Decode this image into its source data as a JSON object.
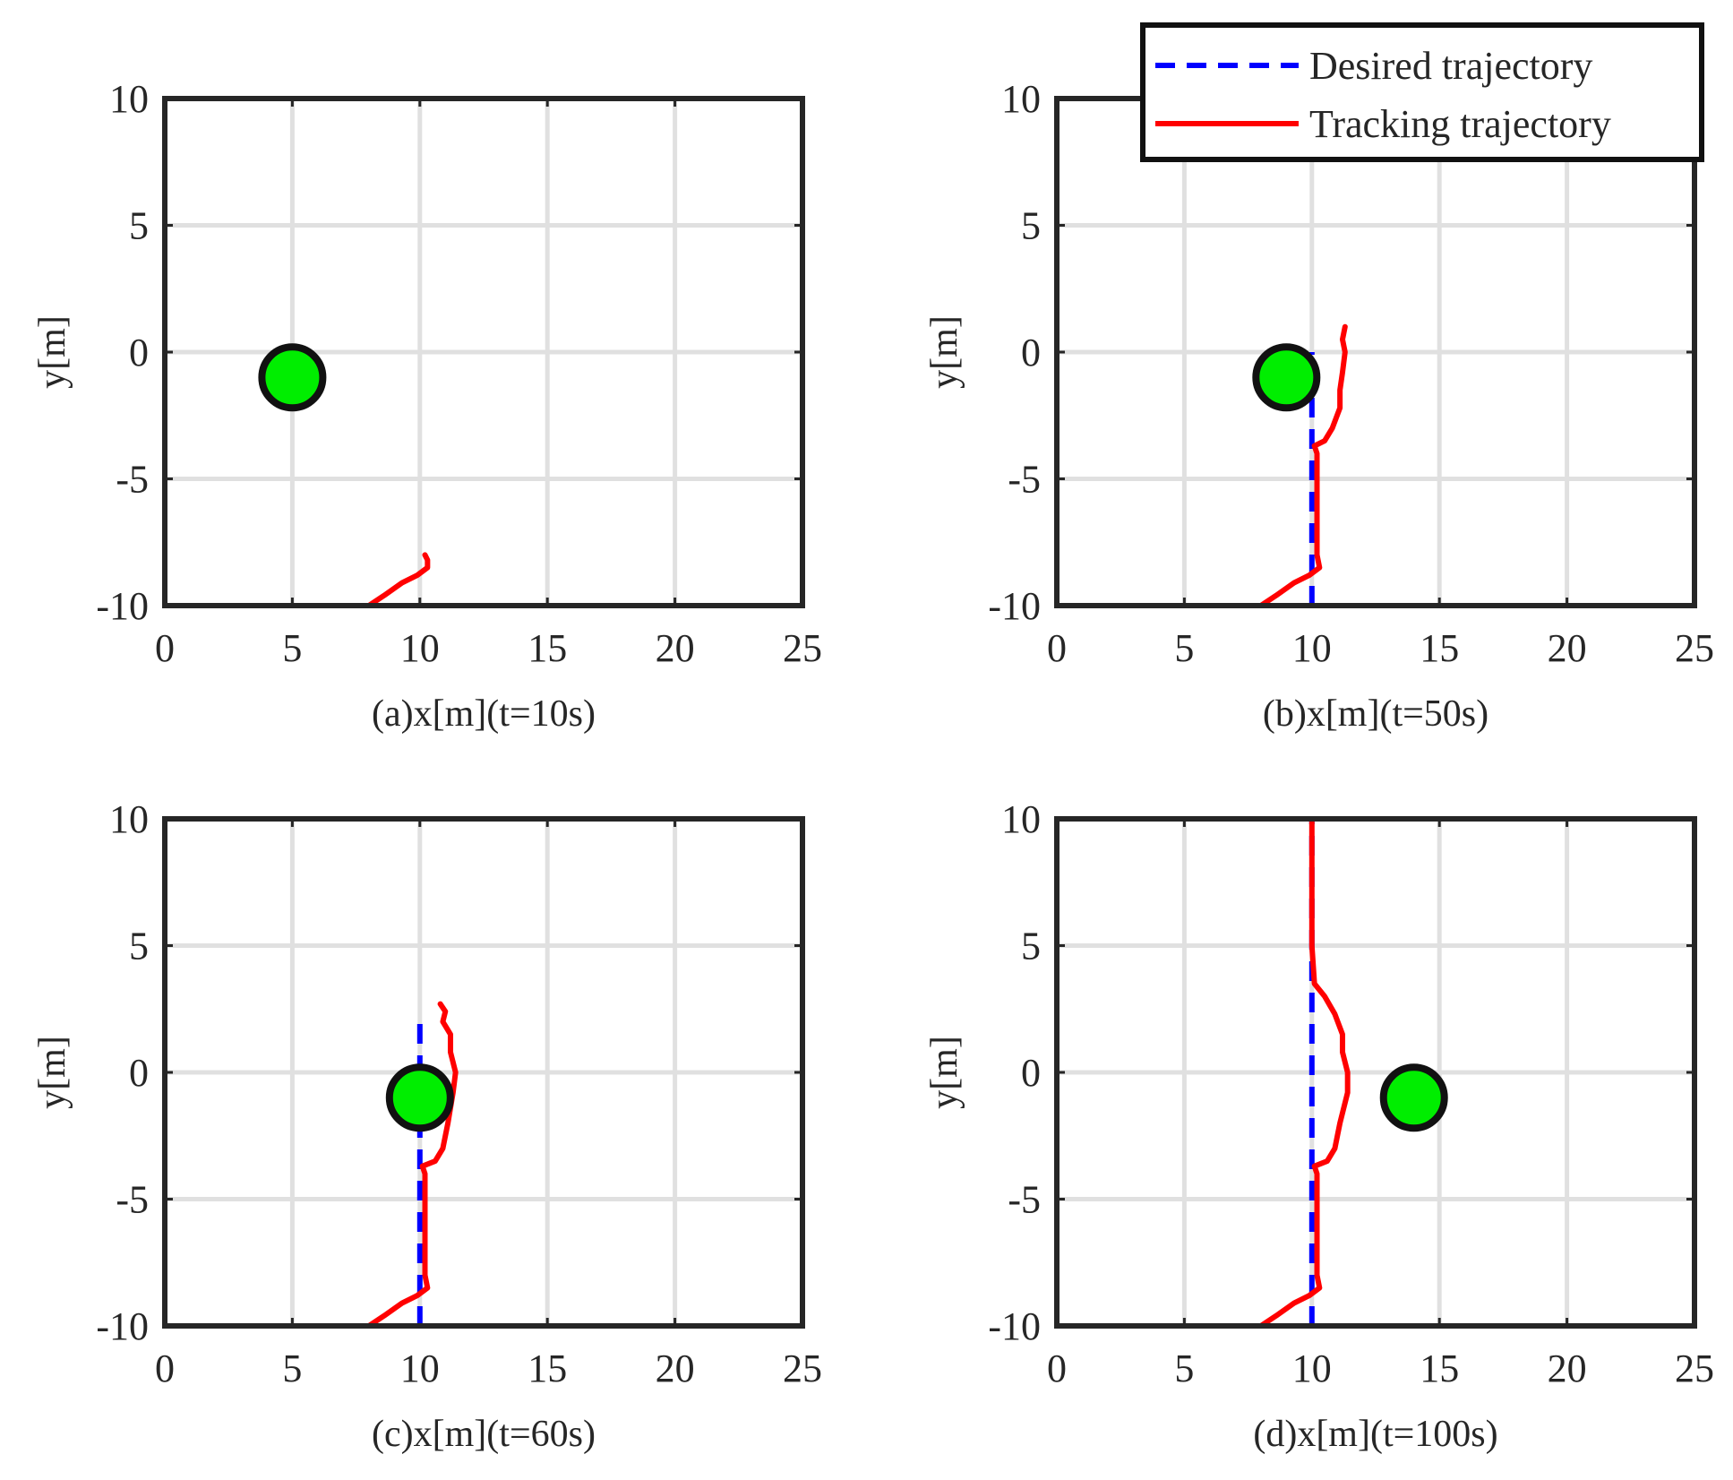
{
  "colors": {
    "desired": "#0000ff",
    "tracking": "#ff0000",
    "marker_fill": "#00ee00",
    "marker_edge": "#111111",
    "grid": "#e0e0e0",
    "axes": "#262626"
  },
  "legend": {
    "placement": "top-right",
    "desired_label": "Desired trajectory",
    "tracking_label": "Tracking trajectory"
  },
  "chart_data": [
    {
      "type": "line",
      "xlabel": "(a)x[m](t=10s)",
      "ylabel": "y[m]",
      "xlim": [
        0,
        25
      ],
      "ylim": [
        -10,
        10
      ],
      "xticks": [
        "0",
        "5",
        "10",
        "15",
        "20",
        "25"
      ],
      "yticks": [
        "-10",
        "-5",
        "0",
        "5",
        "10"
      ],
      "grid": true,
      "desired": [],
      "tracking": [
        [
          8,
          -10
        ],
        [
          8.6,
          -9.6
        ],
        [
          9.3,
          -9.1
        ],
        [
          9.9,
          -8.8
        ],
        [
          10.3,
          -8.5
        ],
        [
          10.3,
          -8.2
        ],
        [
          10.2,
          -8.0
        ]
      ],
      "marker": [
        5,
        -1
      ]
    },
    {
      "type": "line",
      "xlabel": "(b)x[m](t=50s)",
      "ylabel": "y[m]",
      "xlim": [
        0,
        25
      ],
      "ylim": [
        -10,
        10
      ],
      "xticks": [
        "0",
        "5",
        "10",
        "15",
        "20",
        "25"
      ],
      "yticks": [
        "-10",
        "-5",
        "0",
        "5",
        "10"
      ],
      "grid": true,
      "desired": [
        [
          10,
          -10
        ],
        [
          10,
          0
        ]
      ],
      "tracking": [
        [
          8,
          -10
        ],
        [
          8.6,
          -9.6
        ],
        [
          9.3,
          -9.1
        ],
        [
          9.9,
          -8.8
        ],
        [
          10.3,
          -8.5
        ],
        [
          10.2,
          -8.0
        ],
        [
          10.2,
          -6.0
        ],
        [
          10.2,
          -4.0
        ],
        [
          10.1,
          -3.7
        ],
        [
          10.5,
          -3.5
        ],
        [
          10.8,
          -3.0
        ],
        [
          11.1,
          -2.2
        ],
        [
          11.1,
          -1.5
        ],
        [
          11.2,
          -0.8
        ],
        [
          11.3,
          0
        ],
        [
          11.2,
          0.5
        ],
        [
          11.3,
          1.0
        ]
      ],
      "marker": [
        9,
        -1
      ]
    },
    {
      "type": "line",
      "xlabel": "(c)x[m](t=60s)",
      "ylabel": "y[m]",
      "xlim": [
        0,
        25
      ],
      "ylim": [
        -10,
        10
      ],
      "xticks": [
        "0",
        "5",
        "10",
        "15",
        "20",
        "25"
      ],
      "yticks": [
        "-10",
        "-5",
        "0",
        "5",
        "10"
      ],
      "grid": true,
      "desired": [
        [
          10,
          -10
        ],
        [
          10,
          2
        ]
      ],
      "tracking": [
        [
          8,
          -10
        ],
        [
          8.6,
          -9.6
        ],
        [
          9.3,
          -9.1
        ],
        [
          9.9,
          -8.8
        ],
        [
          10.3,
          -8.5
        ],
        [
          10.2,
          -8.0
        ],
        [
          10.2,
          -6.0
        ],
        [
          10.2,
          -4.0
        ],
        [
          10.1,
          -3.7
        ],
        [
          10.6,
          -3.5
        ],
        [
          10.9,
          -3.0
        ],
        [
          11.1,
          -2.0
        ],
        [
          11.3,
          -0.8
        ],
        [
          11.4,
          0
        ],
        [
          11.2,
          0.8
        ],
        [
          11.2,
          1.5
        ],
        [
          10.9,
          2.0
        ],
        [
          11.0,
          2.4
        ],
        [
          10.8,
          2.7
        ]
      ],
      "marker": [
        10,
        -1
      ]
    },
    {
      "type": "line",
      "xlabel": "(d)x[m](t=100s)",
      "ylabel": "y[m]",
      "xlim": [
        0,
        25
      ],
      "ylim": [
        -10,
        10
      ],
      "xticks": [
        "0",
        "5",
        "10",
        "15",
        "20",
        "25"
      ],
      "yticks": [
        "-10",
        "-5",
        "0",
        "5",
        "10"
      ],
      "grid": true,
      "desired": [
        [
          10,
          -10
        ],
        [
          10,
          10
        ]
      ],
      "tracking": [
        [
          8,
          -10
        ],
        [
          8.6,
          -9.6
        ],
        [
          9.3,
          -9.1
        ],
        [
          9.9,
          -8.8
        ],
        [
          10.3,
          -8.5
        ],
        [
          10.2,
          -8.0
        ],
        [
          10.2,
          -6.0
        ],
        [
          10.2,
          -4.0
        ],
        [
          10.1,
          -3.7
        ],
        [
          10.6,
          -3.5
        ],
        [
          10.9,
          -3.0
        ],
        [
          11.1,
          -2.0
        ],
        [
          11.4,
          -0.8
        ],
        [
          11.4,
          0
        ],
        [
          11.2,
          0.8
        ],
        [
          11.2,
          1.5
        ],
        [
          10.9,
          2.3
        ],
        [
          10.5,
          3.0
        ],
        [
          10.1,
          3.5
        ],
        [
          10.0,
          5.0
        ],
        [
          10.0,
          7.5
        ],
        [
          10.0,
          10
        ]
      ],
      "marker": [
        14,
        -1
      ]
    }
  ]
}
